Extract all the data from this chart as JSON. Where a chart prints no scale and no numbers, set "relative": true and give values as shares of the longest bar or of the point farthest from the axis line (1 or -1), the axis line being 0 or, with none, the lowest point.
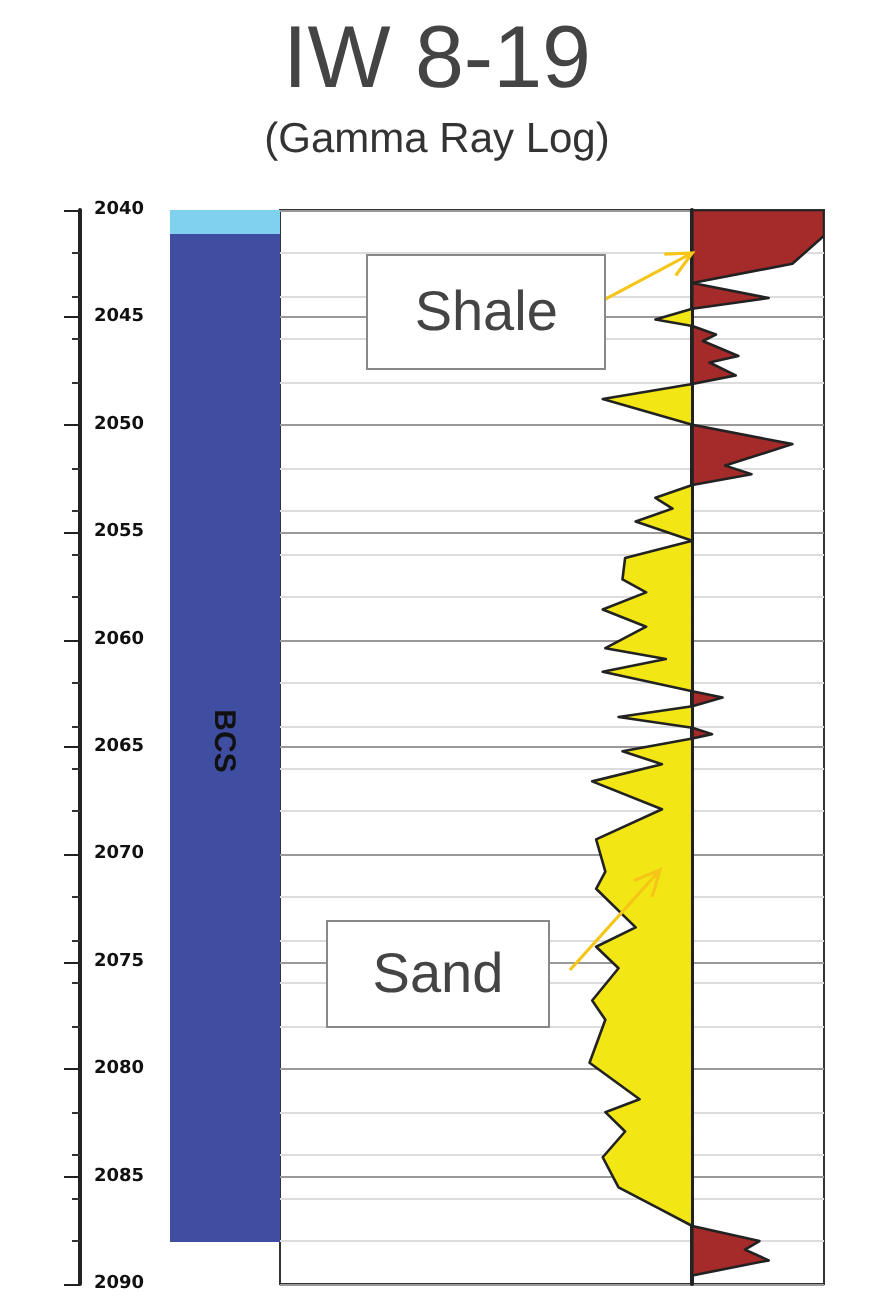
{
  "chart_data": {
    "type": "area",
    "title": "IW 8-19",
    "subtitle": "(Gamma Ray Log)",
    "orientation": "horizontal",
    "relative": true,
    "ylim": [
      2090,
      2040
    ],
    "yticks": [
      2040,
      2045,
      2050,
      2055,
      2060,
      2065,
      2070,
      2075,
      2080,
      2085,
      2090
    ],
    "grid": "y",
    "series": [
      {
        "color": "#a52a2a",
        "x": [
          2040,
          2041.2,
          2042.5,
          2043.4,
          2044.1,
          2044.6,
          2045.4,
          2045.8,
          2046.1,
          2046.8,
          2047.1,
          2047.7,
          2048.1,
          2050.0,
          2050.9,
          2051.9,
          2052.3,
          2052.8,
          2062.4,
          2062.7,
          2063.1,
          2064.1,
          2064.4,
          2064.6,
          2087.3,
          2088.0,
          2088.4,
          2088.9,
          2089.6
        ],
        "values": [
          1,
          1,
          0.76,
          0,
          0.58,
          0,
          0,
          0.18,
          0.08,
          0.35,
          0.13,
          0.33,
          0,
          0,
          0.76,
          0.25,
          0.45,
          0,
          0,
          0.23,
          0,
          0,
          0.15,
          0,
          0,
          0.51,
          0.4,
          0.58,
          0
        ]
      },
      {
        "color": "#f2e614",
        "x": [
          2044.6,
          2045.1,
          2045.4,
          2048.1,
          2048.8,
          2050.0,
          2052.8,
          2053.4,
          2053.9,
          2054.5,
          2055.4,
          2056.2,
          2057.2,
          2057.8,
          2058.6,
          2059.4,
          2060.4,
          2060.9,
          2061.5,
          2062.4,
          2063.1,
          2063.6,
          2064.1,
          2064.6,
          2065.2,
          2065.8,
          2066.6,
          2067.9,
          2069.3,
          2070.8,
          2071.6,
          2073.4,
          2074.3,
          2075.3,
          2076.8,
          2077.7,
          2079.7,
          2081.4,
          2082.0,
          2082.9,
          2084.1,
          2085.5,
          2086.4,
          2087.3
        ],
        "values": [
          0,
          -0.28,
          0,
          0,
          -0.68,
          0,
          0,
          -0.28,
          -0.15,
          -0.43,
          0,
          -0.51,
          -0.53,
          -0.35,
          -0.68,
          -0.35,
          -0.66,
          -0.2,
          -0.68,
          0,
          0,
          -0.56,
          0,
          0,
          -0.53,
          -0.23,
          -0.76,
          -0.23,
          -0.73,
          -0.66,
          -0.73,
          -0.43,
          -0.73,
          -0.56,
          -0.76,
          -0.66,
          -0.78,
          -0.4,
          -0.66,
          -0.51,
          -0.68,
          -0.56,
          -0.28,
          0
        ]
      }
    ],
    "annotations": [
      "BCS",
      {
        "text": "Shale",
        "x": 0,
        "y": 2042
      },
      "Sand"
    ]
  }
}
